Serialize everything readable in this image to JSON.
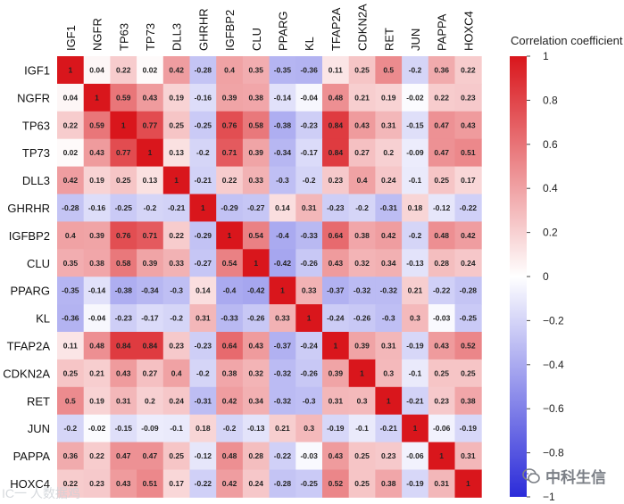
{
  "chart_data": {
    "type": "heatmap",
    "title": "",
    "colorbar_label": "Correlation coefficient",
    "colorbar_range": [
      -1,
      1
    ],
    "colorbar_ticks": [
      1,
      0.8,
      0.6,
      0.4,
      0.2,
      0,
      -0.2,
      -0.4,
      -0.6,
      -0.8,
      -1
    ],
    "colors": {
      "low": "#2b2bd9",
      "mid": "#ffffff",
      "high": "#d9161c"
    },
    "variables": [
      "IGF1",
      "NGFR",
      "TP63",
      "TP73",
      "DLL3",
      "GHRHR",
      "IGFBP2",
      "CLU",
      "PPARG",
      "KL",
      "TFAP2A",
      "CDKN2A",
      "RET",
      "JUN",
      "PAPPA",
      "HOXC4"
    ],
    "values": [
      [
        1,
        0.04,
        0.22,
        0.02,
        0.42,
        -0.28,
        0.4,
        0.35,
        -0.35,
        -0.36,
        0.11,
        0.25,
        0.5,
        -0.2,
        0.36,
        0.22
      ],
      [
        0.04,
        1,
        0.59,
        0.43,
        0.19,
        -0.16,
        0.39,
        0.38,
        -0.14,
        -0.04,
        0.48,
        0.21,
        0.19,
        -0.02,
        0.22,
        0.23
      ],
      [
        0.22,
        0.59,
        1,
        0.77,
        0.25,
        -0.25,
        0.76,
        0.58,
        -0.38,
        -0.23,
        0.84,
        0.43,
        0.31,
        -0.15,
        0.47,
        0.43
      ],
      [
        0.02,
        0.43,
        0.77,
        1,
        0.13,
        -0.2,
        0.71,
        0.39,
        -0.34,
        -0.17,
        0.84,
        0.27,
        0.2,
        -0.09,
        0.47,
        0.51
      ],
      [
        0.42,
        0.19,
        0.25,
        0.13,
        1,
        -0.21,
        0.22,
        0.33,
        -0.3,
        -0.2,
        0.23,
        0.4,
        0.24,
        -0.1,
        0.25,
        0.17
      ],
      [
        -0.28,
        -0.16,
        -0.25,
        -0.2,
        -0.21,
        1,
        -0.29,
        -0.27,
        0.14,
        0.31,
        -0.23,
        -0.2,
        -0.31,
        0.18,
        -0.12,
        -0.22
      ],
      [
        0.4,
        0.39,
        0.76,
        0.71,
        0.22,
        -0.29,
        1,
        0.54,
        -0.4,
        -0.33,
        0.64,
        0.38,
        0.42,
        -0.2,
        0.48,
        0.42
      ],
      [
        0.35,
        0.38,
        0.58,
        0.39,
        0.33,
        -0.27,
        0.54,
        1,
        -0.42,
        -0.26,
        0.43,
        0.32,
        0.34,
        -0.13,
        0.28,
        0.24
      ],
      [
        -0.35,
        -0.14,
        -0.38,
        -0.34,
        -0.3,
        0.14,
        -0.4,
        -0.42,
        1,
        0.33,
        -0.37,
        -0.32,
        -0.32,
        0.21,
        -0.22,
        -0.28
      ],
      [
        -0.36,
        -0.04,
        -0.23,
        -0.17,
        -0.2,
        0.31,
        -0.33,
        -0.26,
        0.33,
        1,
        -0.24,
        -0.26,
        -0.3,
        0.3,
        -0.03,
        -0.25
      ],
      [
        0.11,
        0.48,
        0.84,
        0.84,
        0.23,
        -0.23,
        0.64,
        0.43,
        -0.37,
        -0.24,
        1,
        0.39,
        0.31,
        -0.19,
        0.43,
        0.52
      ],
      [
        0.25,
        0.21,
        0.43,
        0.27,
        0.4,
        -0.2,
        0.38,
        0.32,
        -0.32,
        -0.26,
        0.39,
        1,
        0.3,
        -0.1,
        0.25,
        0.25
      ],
      [
        0.5,
        0.19,
        0.31,
        0.2,
        0.24,
        -0.31,
        0.42,
        0.34,
        -0.32,
        -0.3,
        0.31,
        0.3,
        1,
        -0.21,
        0.23,
        0.38
      ],
      [
        -0.2,
        -0.02,
        -0.15,
        -0.09,
        -0.1,
        0.18,
        -0.2,
        -0.13,
        0.21,
        0.3,
        -0.19,
        -0.1,
        -0.21,
        1,
        -0.06,
        -0.19
      ],
      [
        0.36,
        0.22,
        0.47,
        0.47,
        0.25,
        -0.12,
        0.48,
        0.28,
        -0.22,
        -0.03,
        0.43,
        0.25,
        0.23,
        -0.06,
        1,
        0.31
      ],
      [
        0.22,
        0.23,
        0.43,
        0.51,
        0.17,
        -0.22,
        0.42,
        0.24,
        -0.28,
        -0.25,
        0.52,
        0.25,
        0.38,
        -0.19,
        0.31,
        1
      ]
    ]
  },
  "watermark": {
    "left_text": "IC一 人数据鸡",
    "right_text": "中科生信",
    "right_icon": "wechat-icon"
  }
}
